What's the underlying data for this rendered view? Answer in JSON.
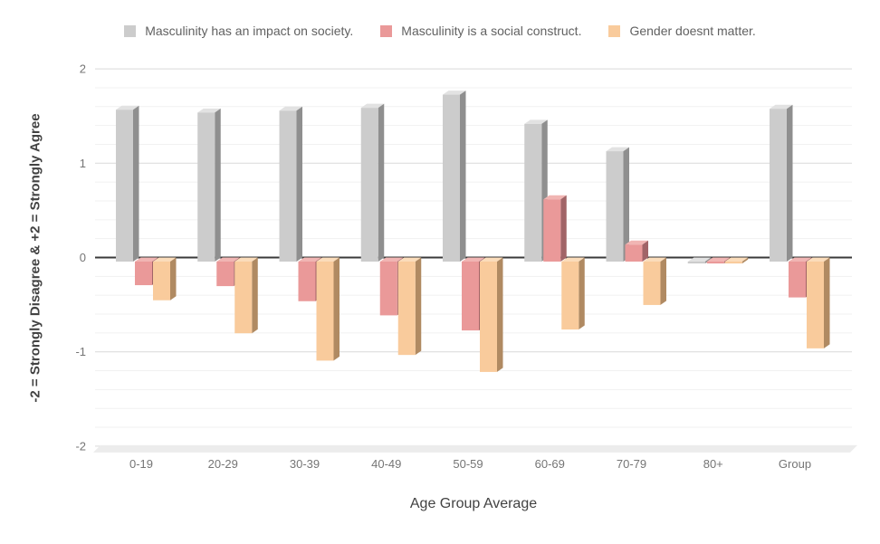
{
  "chart": {
    "y_axis_title": "-2 = Strongly Disagree & +2 = Strongly Agree",
    "x_axis_title": "Age Group Average",
    "background_color": "#ffffff",
    "zero_line_color": "#3a3a3a",
    "major_grid_color": "#d9d9d9",
    "minor_grid_color": "#f1f1f1",
    "floor_color": "#ececec",
    "tick_label_color": "#757575",
    "axis_title_color": "#424242",
    "legend_text_color": "#616161"
  },
  "chart_data": {
    "type": "bar",
    "effect": "3d-columns",
    "title": "",
    "xlabel": "Age Group Average",
    "ylabel": "-2 = Strongly Disagree & +2 = Strongly Agree",
    "ylim": [
      -2,
      2
    ],
    "y_major_ticks": [
      2,
      1,
      0,
      -1,
      -2
    ],
    "y_minor_step": 0.2,
    "grid": true,
    "legend_position": "top",
    "categories": [
      "0-19",
      "20-29",
      "30-39",
      "40-49",
      "50-59",
      "60-69",
      "70-79",
      "80+",
      "Group"
    ],
    "series": [
      {
        "name": "Masculinity has an impact on society.",
        "color": "#cccccc",
        "top_color": "#e2e2e2",
        "side_color": "#8f8f8f",
        "values": [
          1.61,
          1.58,
          1.6,
          1.63,
          1.77,
          1.46,
          1.17,
          -0.02,
          1.62
        ]
      },
      {
        "name": "Masculinity is a social construct.",
        "color": "#ea9999",
        "top_color": "#f1b5b3",
        "side_color": "#a16467",
        "values": [
          -0.25,
          -0.26,
          -0.42,
          -0.57,
          -0.73,
          0.66,
          0.18,
          -0.02,
          -0.38
        ]
      },
      {
        "name": "Gender doesnt matter.",
        "color": "#f9cb9c",
        "top_color": "#fbdcba",
        "side_color": "#b08a62",
        "values": [
          -0.41,
          -0.76,
          -1.05,
          -0.99,
          -1.17,
          -0.72,
          -0.46,
          -0.02,
          -0.92
        ]
      }
    ]
  }
}
